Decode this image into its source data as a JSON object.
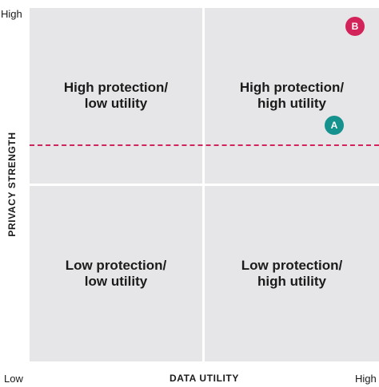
{
  "quadrants": {
    "top_left": {
      "line1": "High protection/",
      "line2": "low utility"
    },
    "top_right": {
      "line1": "High protection/",
      "line2": "high utility"
    },
    "bottom_left": {
      "line1": "Low protection/",
      "line2": "low utility"
    },
    "bottom_right": {
      "line1": "Low protection/",
      "line2": "high utility"
    }
  },
  "axes": {
    "x_title": "DATA UTILITY",
    "y_title": "PRIVACY STRENGTH",
    "x_low": "Low",
    "x_high": "High",
    "y_high": "High"
  },
  "markers": [
    {
      "id": "B",
      "label": "B",
      "color": "#d2245a"
    },
    {
      "id": "A",
      "label": "A",
      "color": "#16928e"
    }
  ],
  "colors": {
    "quadrant_fill": "#e6e6e8",
    "threshold_line": "#d2245a"
  }
}
